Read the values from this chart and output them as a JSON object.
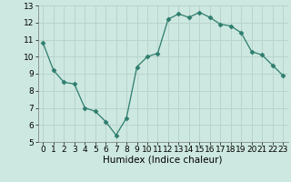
{
  "x": [
    0,
    1,
    2,
    3,
    4,
    5,
    6,
    7,
    8,
    9,
    10,
    11,
    12,
    13,
    14,
    15,
    16,
    17,
    18,
    19,
    20,
    21,
    22,
    23
  ],
  "y": [
    10.8,
    9.2,
    8.5,
    8.4,
    7.0,
    6.8,
    6.2,
    5.4,
    6.4,
    9.4,
    10.0,
    10.2,
    12.2,
    12.5,
    12.3,
    12.6,
    12.3,
    11.9,
    11.8,
    11.4,
    10.3,
    10.1,
    9.5,
    8.9
  ],
  "line_color": "#2d7d6e",
  "marker": "D",
  "marker_size": 2.5,
  "bg_color": "#cde8e0",
  "grid_color": "#b8d4cc",
  "xlabel": "Humidex (Indice chaleur)",
  "xlim": [
    -0.5,
    23.5
  ],
  "ylim": [
    5,
    13
  ],
  "yticks": [
    5,
    6,
    7,
    8,
    9,
    10,
    11,
    12,
    13
  ],
  "xticks": [
    0,
    1,
    2,
    3,
    4,
    5,
    6,
    7,
    8,
    9,
    10,
    11,
    12,
    13,
    14,
    15,
    16,
    17,
    18,
    19,
    20,
    21,
    22,
    23
  ],
  "tick_fontsize": 6.5,
  "xlabel_fontsize": 7.5
}
